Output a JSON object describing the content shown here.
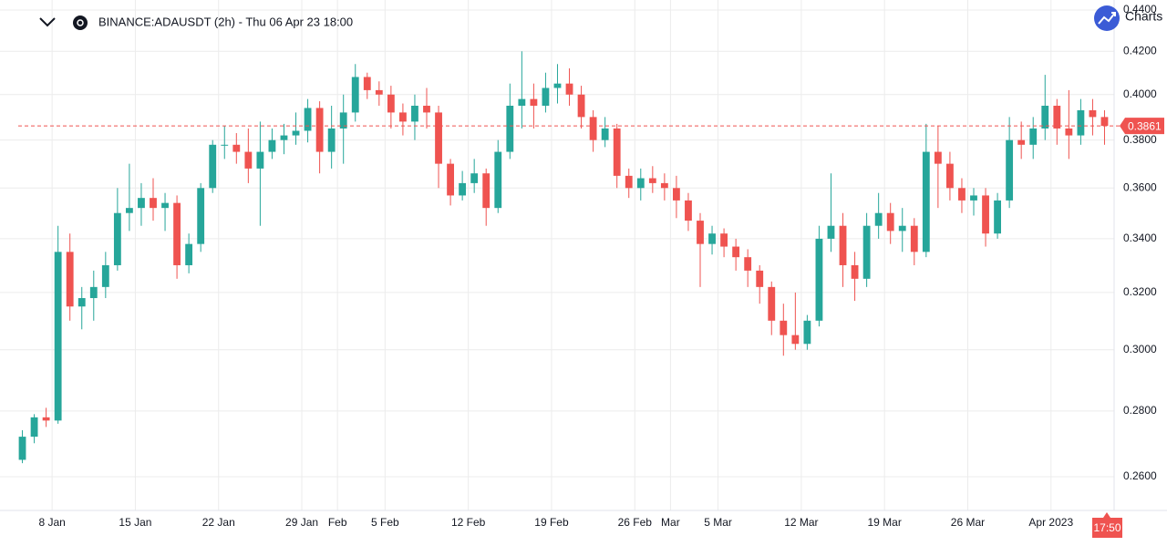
{
  "header": {
    "symbol": "BINANCE:ADAUSDT (2h) - Thu 06 Apr 23 18:00",
    "brand": "Charts"
  },
  "chart_data": {
    "type": "candlestick",
    "x": [
      "2023-01-05",
      "2023-01-06",
      "2023-01-07",
      "2023-01-08",
      "2023-01-09",
      "2023-01-10",
      "2023-01-11",
      "2023-01-12",
      "2023-01-13",
      "2023-01-14",
      "2023-01-15",
      "2023-01-16",
      "2023-01-17",
      "2023-01-18",
      "2023-01-19",
      "2023-01-20",
      "2023-01-21",
      "2023-01-22",
      "2023-01-23",
      "2023-01-24",
      "2023-01-25",
      "2023-01-26",
      "2023-01-27",
      "2023-01-28",
      "2023-01-29",
      "2023-01-30",
      "2023-01-31",
      "2023-02-01",
      "2023-02-02",
      "2023-02-03",
      "2023-02-04",
      "2023-02-05",
      "2023-02-06",
      "2023-02-07",
      "2023-02-08",
      "2023-02-09",
      "2023-02-10",
      "2023-02-11",
      "2023-02-12",
      "2023-02-13",
      "2023-02-14",
      "2023-02-15",
      "2023-02-16",
      "2023-02-17",
      "2023-02-18",
      "2023-02-19",
      "2023-02-20",
      "2023-02-21",
      "2023-02-22",
      "2023-02-23",
      "2023-02-24",
      "2023-02-25",
      "2023-02-26",
      "2023-02-27",
      "2023-02-28",
      "2023-03-01",
      "2023-03-02",
      "2023-03-03",
      "2023-03-04",
      "2023-03-05",
      "2023-03-06",
      "2023-03-07",
      "2023-03-08",
      "2023-03-09",
      "2023-03-10",
      "2023-03-11",
      "2023-03-12",
      "2023-03-13",
      "2023-03-14",
      "2023-03-15",
      "2023-03-16",
      "2023-03-17",
      "2023-03-18",
      "2023-03-19",
      "2023-03-20",
      "2023-03-21",
      "2023-03-22",
      "2023-03-23",
      "2023-03-24",
      "2023-03-25",
      "2023-03-26",
      "2023-03-27",
      "2023-03-28",
      "2023-03-29",
      "2023-03-30",
      "2023-03-31",
      "2023-04-01",
      "2023-04-02",
      "2023-04-03",
      "2023-04-04",
      "2023-04-05",
      "2023-04-06"
    ],
    "open": [
      0.265,
      0.272,
      0.278,
      0.277,
      0.335,
      0.315,
      0.318,
      0.322,
      0.33,
      0.35,
      0.352,
      0.356,
      0.352,
      0.354,
      0.33,
      0.338,
      0.36,
      0.378,
      0.378,
      0.375,
      0.368,
      0.375,
      0.38,
      0.382,
      0.384,
      0.394,
      0.375,
      0.385,
      0.392,
      0.408,
      0.402,
      0.4,
      0.392,
      0.388,
      0.395,
      0.392,
      0.37,
      0.357,
      0.362,
      0.366,
      0.352,
      0.375,
      0.395,
      0.398,
      0.395,
      0.403,
      0.405,
      0.4,
      0.39,
      0.38,
      0.385,
      0.365,
      0.36,
      0.364,
      0.362,
      0.36,
      0.355,
      0.347,
      0.338,
      0.342,
      0.337,
      0.333,
      0.328,
      0.322,
      0.31,
      0.305,
      0.302,
      0.31,
      0.34,
      0.345,
      0.33,
      0.325,
      0.345,
      0.35,
      0.343,
      0.345,
      0.335,
      0.375,
      0.37,
      0.36,
      0.355,
      0.357,
      0.342,
      0.355,
      0.38,
      0.378,
      0.385,
      0.395,
      0.385,
      0.382,
      0.393,
      0.39
    ],
    "high": [
      0.274,
      0.279,
      0.281,
      0.345,
      0.342,
      0.322,
      0.328,
      0.335,
      0.36,
      0.37,
      0.362,
      0.364,
      0.358,
      0.357,
      0.342,
      0.362,
      0.38,
      0.386,
      0.383,
      0.385,
      0.388,
      0.385,
      0.387,
      0.392,
      0.398,
      0.397,
      0.395,
      0.4,
      0.414,
      0.41,
      0.406,
      0.404,
      0.396,
      0.4,
      0.403,
      0.395,
      0.372,
      0.367,
      0.372,
      0.368,
      0.38,
      0.405,
      0.42,
      0.405,
      0.41,
      0.414,
      0.412,
      0.404,
      0.393,
      0.39,
      0.387,
      0.368,
      0.368,
      0.369,
      0.366,
      0.365,
      0.358,
      0.35,
      0.345,
      0.344,
      0.34,
      0.336,
      0.33,
      0.324,
      0.316,
      0.32,
      0.312,
      0.345,
      0.366,
      0.35,
      0.335,
      0.35,
      0.358,
      0.354,
      0.352,
      0.348,
      0.387,
      0.386,
      0.375,
      0.364,
      0.36,
      0.36,
      0.358,
      0.39,
      0.388,
      0.39,
      0.409,
      0.398,
      0.402,
      0.398,
      0.398,
      0.393
    ],
    "low": [
      0.264,
      0.27,
      0.275,
      0.276,
      0.31,
      0.307,
      0.31,
      0.318,
      0.328,
      0.343,
      0.345,
      0.347,
      0.343,
      0.325,
      0.327,
      0.335,
      0.358,
      0.372,
      0.37,
      0.362,
      0.345,
      0.372,
      0.374,
      0.378,
      0.379,
      0.366,
      0.368,
      0.37,
      0.388,
      0.398,
      0.395,
      0.385,
      0.382,
      0.38,
      0.385,
      0.36,
      0.353,
      0.355,
      0.358,
      0.345,
      0.35,
      0.372,
      0.385,
      0.385,
      0.392,
      0.396,
      0.395,
      0.385,
      0.375,
      0.377,
      0.36,
      0.356,
      0.355,
      0.358,
      0.355,
      0.348,
      0.343,
      0.322,
      0.334,
      0.333,
      0.328,
      0.322,
      0.316,
      0.305,
      0.298,
      0.3,
      0.3,
      0.308,
      0.335,
      0.322,
      0.317,
      0.322,
      0.34,
      0.338,
      0.335,
      0.33,
      0.333,
      0.352,
      0.355,
      0.35,
      0.349,
      0.337,
      0.34,
      0.352,
      0.372,
      0.372,
      0.38,
      0.378,
      0.372,
      0.378,
      0.382,
      0.378
    ],
    "close": [
      0.272,
      0.278,
      0.277,
      0.335,
      0.315,
      0.318,
      0.322,
      0.33,
      0.35,
      0.352,
      0.356,
      0.352,
      0.354,
      0.33,
      0.338,
      0.36,
      0.378,
      0.378,
      0.375,
      0.368,
      0.375,
      0.38,
      0.382,
      0.384,
      0.394,
      0.375,
      0.385,
      0.392,
      0.408,
      0.402,
      0.4,
      0.392,
      0.388,
      0.395,
      0.392,
      0.37,
      0.357,
      0.362,
      0.366,
      0.352,
      0.375,
      0.395,
      0.398,
      0.395,
      0.403,
      0.405,
      0.4,
      0.39,
      0.38,
      0.385,
      0.365,
      0.36,
      0.364,
      0.362,
      0.36,
      0.355,
      0.347,
      0.338,
      0.342,
      0.337,
      0.333,
      0.328,
      0.322,
      0.31,
      0.305,
      0.302,
      0.31,
      0.34,
      0.345,
      0.33,
      0.325,
      0.345,
      0.35,
      0.343,
      0.345,
      0.335,
      0.375,
      0.37,
      0.36,
      0.355,
      0.357,
      0.342,
      0.355,
      0.38,
      0.378,
      0.385,
      0.395,
      0.385,
      0.382,
      0.393,
      0.39,
      0.3861
    ],
    "up_color": "#26a69a",
    "down_color": "#ef5350",
    "xlim": [
      "2023-01-05",
      "2023-04-07"
    ],
    "xticks": [
      {
        "value": "2023-01-08",
        "label": "8 Jan"
      },
      {
        "value": "2023-01-15",
        "label": "15 Jan"
      },
      {
        "value": "2023-01-22",
        "label": "22 Jan"
      },
      {
        "value": "2023-01-29",
        "label": "29 Jan"
      },
      {
        "value": "2023-02-01",
        "label": "Feb"
      },
      {
        "value": "2023-02-05",
        "label": "5 Feb"
      },
      {
        "value": "2023-02-12",
        "label": "12 Feb"
      },
      {
        "value": "2023-02-19",
        "label": "19 Feb"
      },
      {
        "value": "2023-02-26",
        "label": "26 Feb"
      },
      {
        "value": "2023-03-01",
        "label": "Mar"
      },
      {
        "value": "2023-03-05",
        "label": "5 Mar"
      },
      {
        "value": "2023-03-12",
        "label": "12 Mar"
      },
      {
        "value": "2023-03-19",
        "label": "19 Mar"
      },
      {
        "value": "2023-03-26",
        "label": "26 Mar"
      },
      {
        "value": "2023-04-02",
        "label": "Apr 2023"
      }
    ],
    "ylim": [
      0.2503,
      0.445
    ],
    "yticks": [
      {
        "value": 0.26,
        "label": "0.2600"
      },
      {
        "value": 0.28,
        "label": "0.2800"
      },
      {
        "value": 0.3,
        "label": "0.3000"
      },
      {
        "value": 0.32,
        "label": "0.3200"
      },
      {
        "value": 0.34,
        "label": "0.3400"
      },
      {
        "value": 0.36,
        "label": "0.3600"
      },
      {
        "value": 0.38,
        "label": "0.3800"
      },
      {
        "value": 0.4,
        "label": "0.4000"
      },
      {
        "value": 0.42,
        "label": "0.4200"
      },
      {
        "value": 0.44,
        "label": "0.4400"
      }
    ],
    "log_scale": true,
    "grid": true,
    "last_price": 0.3861,
    "countdown": "17:50"
  }
}
